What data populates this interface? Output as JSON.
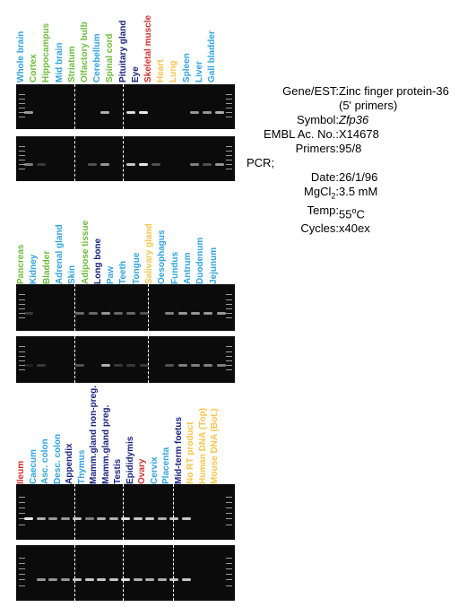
{
  "panels": [
    {
      "labels": [
        {
          "text": "Whole brain",
          "color": "#2fa3dd"
        },
        {
          "text": "Cortex",
          "color": "#6dbb3a"
        },
        {
          "text": "Hippocampus",
          "color": "#6dbb3a"
        },
        {
          "text": "Mid brain",
          "color": "#2fa3dd"
        },
        {
          "text": "Striatum",
          "color": "#6dbb3a"
        },
        {
          "text": "Olfactory bulb",
          "color": "#6dbb3a"
        },
        {
          "text": "Cerebellum",
          "color": "#2fa3dd"
        },
        {
          "text": "Spinal cord",
          "color": "#6dbb3a"
        },
        {
          "text": "Pituitary gland",
          "color": "#1a237e"
        },
        {
          "text": "Eye",
          "color": "#1a237e"
        },
        {
          "text": "Skeletal muscle",
          "color": "#d32f2f"
        },
        {
          "text": "Heart",
          "color": "#f6c54a"
        },
        {
          "text": "Lung",
          "color": "#f6c54a"
        },
        {
          "text": "Spleen",
          "color": "#2fa3dd"
        },
        {
          "text": "Liver",
          "color": "#2fa3dd"
        },
        {
          "text": "Gall bladder",
          "color": "#2fa3dd"
        }
      ],
      "gels": [
        {
          "bands": [
            0.6,
            0,
            0,
            0,
            0,
            0,
            0.7,
            0,
            0.9,
            0.95,
            0,
            0,
            0,
            0.6,
            0.6,
            0.7
          ]
        },
        {
          "bands": [
            0.5,
            0.2,
            0,
            0,
            0,
            0.3,
            0.6,
            0,
            0.8,
            0.95,
            0.3,
            0,
            0,
            0.5,
            0.3,
            0.6
          ]
        }
      ]
    },
    {
      "labels": [
        {
          "text": "Pancreas",
          "color": "#6dbb3a"
        },
        {
          "text": "Kidney",
          "color": "#2fa3dd"
        },
        {
          "text": "Bladder",
          "color": "#6dbb3a"
        },
        {
          "text": "Adrenal gland",
          "color": "#2fa3dd"
        },
        {
          "text": "Skin",
          "color": "#2fa3dd"
        },
        {
          "text": "Adipose tissue",
          "color": "#6dbb3a"
        },
        {
          "text": "Long bone",
          "color": "#1a237e"
        },
        {
          "text": "Paw",
          "color": "#2fa3dd"
        },
        {
          "text": "Teeth",
          "color": "#2fa3dd"
        },
        {
          "text": "Tongue",
          "color": "#2fa3dd"
        },
        {
          "text": "Salivary gland",
          "color": "#f6c54a"
        },
        {
          "text": "Oesophagus",
          "color": "#2fa3dd"
        },
        {
          "text": "Fundus",
          "color": "#2fa3dd"
        },
        {
          "text": "Antrum",
          "color": "#2fa3dd"
        },
        {
          "text": "Duodenum",
          "color": "#2fa3dd"
        },
        {
          "text": "Jejunum",
          "color": "#2fa3dd"
        }
      ],
      "gels": [
        {
          "bands": [
            0.2,
            0,
            0,
            0,
            0.4,
            0.4,
            0.6,
            0.4,
            0.4,
            0.3,
            0,
            0.5,
            0.6,
            0.6,
            0.6,
            0.6
          ]
        },
        {
          "bands": [
            0.1,
            0.2,
            0,
            0,
            0.3,
            0,
            0.7,
            0.2,
            0.2,
            0.2,
            0,
            0.3,
            0.5,
            0.5,
            0.5,
            0.5
          ]
        }
      ]
    },
    {
      "labels": [
        {
          "text": "Ileum",
          "color": "#d32f2f"
        },
        {
          "text": "Caecum",
          "color": "#2fa3dd"
        },
        {
          "text": "Asc. colon",
          "color": "#2fa3dd"
        },
        {
          "text": "Desc. colon",
          "color": "#2fa3dd"
        },
        {
          "text": "Appendix",
          "color": "#1a237e"
        },
        {
          "text": "Thymus",
          "color": "#2fa3dd"
        },
        {
          "text": "Mamm.gland non-preg.",
          "color": "#1a237e"
        },
        {
          "text": "Mamm.gland preg.",
          "color": "#1a237e"
        },
        {
          "text": "Testis",
          "color": "#1a237e"
        },
        {
          "text": "Epididymis",
          "color": "#1a237e"
        },
        {
          "text": "Ovary",
          "color": "#d32f2f"
        },
        {
          "text": "Cervix",
          "color": "#2fa3dd"
        },
        {
          "text": "Placenta",
          "color": "#2fa3dd"
        },
        {
          "text": "Mid-term foetus",
          "color": "#1a237e"
        },
        {
          "text": "No RT product",
          "color": "#f6c54a"
        },
        {
          "text": "Human DNA (Top)",
          "color": "#f6c54a"
        },
        {
          "text": "Mouse DNA (Bot.)",
          "color": "#f6c54a"
        }
      ],
      "gels": [
        {
          "bands": [
            0.95,
            0.7,
            0.6,
            0.6,
            0.8,
            0.5,
            0.7,
            0.7,
            0.9,
            0.8,
            0.8,
            0.7,
            0.8,
            0.8,
            0,
            0,
            0
          ]
        },
        {
          "bands": [
            0,
            0.6,
            0.6,
            0.6,
            0.8,
            0.8,
            0.8,
            0.8,
            0.9,
            0.7,
            0.7,
            0.7,
            0.8,
            0.8,
            0,
            0,
            0
          ]
        }
      ]
    }
  ],
  "info": {
    "gene_key": "Gene/EST:",
    "gene_val": "Zinc finger protein-36",
    "gene_note": "(5' primers)",
    "symbol_key": "Symbol:",
    "symbol_val": "Zfp36",
    "embl_key": "EMBL Ac. No.:",
    "embl_val": "X14678",
    "primers_key": "Primers:",
    "primers_val": "95/8",
    "pcr_label": "PCR;",
    "date_key": "Date:",
    "date_val": "26/1/96",
    "mgcl_key_a": "MgCl",
    "mgcl_key_sub": "2",
    "mgcl_key_b": ":",
    "mgcl_val": "3.5 mM",
    "temp_key": "Temp:",
    "temp_val_a": "55",
    "temp_val_sup": "o",
    "temp_val_b": "C",
    "cycles_key": "Cycles:",
    "cycles_val": "x40ex"
  }
}
